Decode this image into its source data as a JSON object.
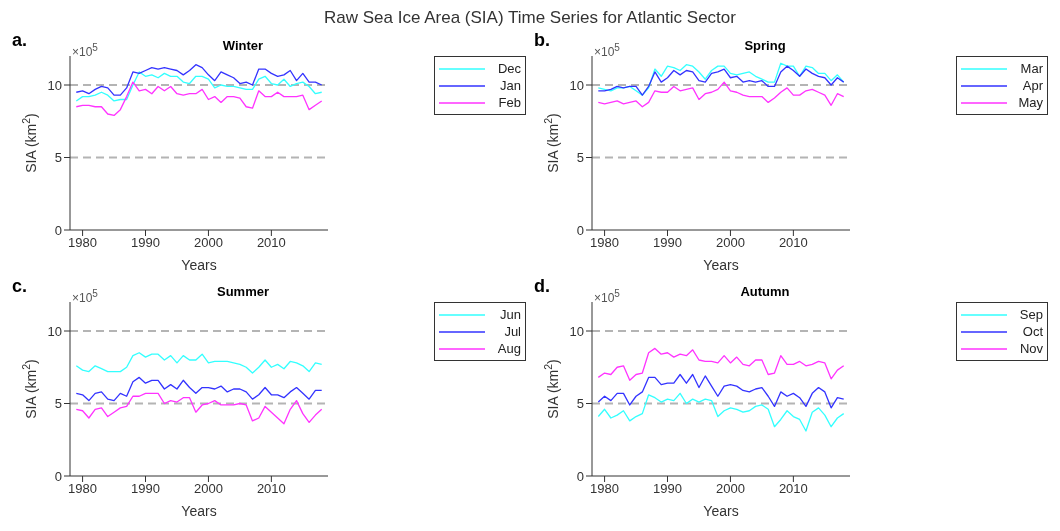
{
  "chart_data": [
    {
      "type": "line",
      "title": "Winter",
      "xlabel": "Years",
      "ylabel": "SIA (km$^{2}$)",
      "annotations": [
        "a.",
        "×10$^{5}$",
        "Raw Sea Ice Area (SIA) Time Series for Atlantic Sector"
      ],
      "x": [
        1979,
        1980,
        1981,
        1982,
        1983,
        1984,
        1985,
        1986,
        1987,
        1988,
        1989,
        1990,
        1991,
        1992,
        1993,
        1994,
        1995,
        1996,
        1997,
        1998,
        1999,
        2000,
        2001,
        2002,
        2003,
        2004,
        2005,
        2006,
        2007,
        2008,
        2009,
        2010,
        2011,
        2012,
        2013,
        2014,
        2015,
        2016,
        2017,
        2018
      ],
      "xlim": [
        1978,
        2019
      ],
      "xticks": [
        1980,
        1990,
        2000,
        2010
      ],
      "ylim": [
        0,
        12
      ],
      "yticks": [
        0,
        5,
        10
      ],
      "legend": "right",
      "marker": "none",
      "line_style": "solid",
      "ref_lines": [
        {
          "axis": "y",
          "value": 5,
          "color": "#b4b4b4",
          "line_style": "dashed"
        },
        {
          "axis": "y",
          "value": 10,
          "color": "#b4b4b4",
          "line_style": "dashed"
        }
      ],
      "series": [
        {
          "name": "Dec",
          "color": "#33ffff",
          "values": [
            8.9,
            9.2,
            9.2,
            9.3,
            9.5,
            9.3,
            8.9,
            9.0,
            9.0,
            10.0,
            10.9,
            10.6,
            10.7,
            10.5,
            10.8,
            10.6,
            10.6,
            10.2,
            10.1,
            10.6,
            10.6,
            10.4,
            9.8,
            10.0,
            9.9,
            9.9,
            9.8,
            9.7,
            9.7,
            10.4,
            10.6,
            10.1,
            10.0,
            10.4,
            9.9,
            10.1,
            10.2,
            9.9,
            9.4,
            9.5
          ]
        },
        {
          "name": "Jan",
          "color": "#3333ff",
          "values": [
            9.5,
            9.6,
            9.4,
            9.7,
            9.9,
            9.8,
            9.3,
            9.3,
            9.8,
            10.9,
            10.8,
            11.0,
            11.2,
            11.1,
            11.2,
            11.1,
            11.0,
            10.7,
            11.0,
            11.4,
            11.2,
            10.7,
            10.3,
            10.9,
            10.7,
            10.5,
            10.1,
            10.2,
            10.0,
            11.1,
            11.1,
            10.8,
            10.6,
            10.7,
            11.0,
            10.3,
            10.8,
            10.2,
            10.2,
            10.0
          ]
        },
        {
          "name": "Feb",
          "color": "#ff33ff",
          "values": [
            8.5,
            8.6,
            8.6,
            8.5,
            8.5,
            8.0,
            7.9,
            8.3,
            9.2,
            10.2,
            9.6,
            9.7,
            9.4,
            9.9,
            9.6,
            9.9,
            9.4,
            9.3,
            9.4,
            9.4,
            9.7,
            9.0,
            9.2,
            8.8,
            9.2,
            9.2,
            9.1,
            8.5,
            8.4,
            9.6,
            9.2,
            9.2,
            9.5,
            9.2,
            9.2,
            9.2,
            9.3,
            8.3,
            8.6,
            8.9
          ]
        }
      ]
    },
    {
      "type": "line",
      "title": "Spring",
      "xlabel": "Years",
      "ylabel": "SIA (km$^{2}$)",
      "annotations": [
        "b.",
        "×10$^{5}$"
      ],
      "x": [
        1979,
        1980,
        1981,
        1982,
        1983,
        1984,
        1985,
        1986,
        1987,
        1988,
        1989,
        1990,
        1991,
        1992,
        1993,
        1994,
        1995,
        1996,
        1997,
        1998,
        1999,
        2000,
        2001,
        2002,
        2003,
        2004,
        2005,
        2006,
        2007,
        2008,
        2009,
        2010,
        2011,
        2012,
        2013,
        2014,
        2015,
        2016,
        2017,
        2018
      ],
      "xlim": [
        1978,
        2019
      ],
      "xticks": [
        1980,
        1990,
        2000,
        2010
      ],
      "ylim": [
        0,
        12
      ],
      "yticks": [
        0,
        5,
        10
      ],
      "legend": "right",
      "marker": "none",
      "line_style": "solid",
      "ref_lines": [
        {
          "axis": "y",
          "value": 5,
          "color": "#b4b4b4",
          "line_style": "dashed"
        },
        {
          "axis": "y",
          "value": 10,
          "color": "#b4b4b4",
          "line_style": "dashed"
        }
      ],
      "series": [
        {
          "name": "Mar",
          "color": "#33ffff",
          "values": [
            9.8,
            9.7,
            9.6,
            9.8,
            9.8,
            9.9,
            9.6,
            9.3,
            9.8,
            11.1,
            10.6,
            11.3,
            11.2,
            11.0,
            11.4,
            11.3,
            10.9,
            10.4,
            11.0,
            11.3,
            11.3,
            10.8,
            10.7,
            10.8,
            10.9,
            10.6,
            10.4,
            10.2,
            10.2,
            11.5,
            11.3,
            11.3,
            10.6,
            11.3,
            11.2,
            10.8,
            10.8,
            10.3,
            10.7,
            10.2
          ]
        },
        {
          "name": "Apr",
          "color": "#3333ff",
          "values": [
            9.6,
            9.6,
            9.7,
            9.9,
            9.8,
            9.9,
            9.9,
            9.3,
            9.9,
            10.9,
            10.2,
            10.5,
            11.0,
            10.7,
            11.0,
            10.9,
            10.3,
            10.2,
            10.8,
            10.9,
            11.1,
            10.5,
            10.6,
            10.2,
            10.3,
            10.2,
            10.3,
            9.9,
            9.9,
            10.9,
            11.3,
            11.0,
            10.6,
            11.1,
            10.8,
            10.6,
            10.5,
            10.0,
            10.5,
            10.2
          ]
        },
        {
          "name": "May",
          "color": "#ff33ff",
          "values": [
            8.8,
            8.7,
            8.8,
            8.9,
            8.7,
            8.8,
            8.9,
            8.5,
            8.8,
            9.6,
            9.5,
            9.5,
            9.9,
            9.6,
            9.7,
            9.8,
            9.0,
            9.4,
            9.5,
            9.7,
            10.2,
            9.6,
            9.5,
            9.3,
            9.2,
            9.2,
            9.2,
            8.8,
            9.1,
            9.5,
            9.8,
            9.3,
            9.3,
            9.6,
            9.7,
            9.5,
            9.3,
            8.6,
            9.4,
            9.2
          ]
        }
      ]
    },
    {
      "type": "line",
      "title": "Summer",
      "xlabel": "Years",
      "ylabel": "SIA (km$^{2}$)",
      "annotations": [
        "c.",
        "×10$^{5}$"
      ],
      "x": [
        1979,
        1980,
        1981,
        1982,
        1983,
        1984,
        1985,
        1986,
        1987,
        1988,
        1989,
        1990,
        1991,
        1992,
        1993,
        1994,
        1995,
        1996,
        1997,
        1998,
        1999,
        2000,
        2001,
        2002,
        2003,
        2004,
        2005,
        2006,
        2007,
        2008,
        2009,
        2010,
        2011,
        2012,
        2013,
        2014,
        2015,
        2016,
        2017,
        2018
      ],
      "xlim": [
        1978,
        2019
      ],
      "xticks": [
        1980,
        1990,
        2000,
        2010
      ],
      "ylim": [
        0,
        12
      ],
      "yticks": [
        0,
        5,
        10
      ],
      "legend": "right",
      "marker": "none",
      "line_style": "solid",
      "ref_lines": [
        {
          "axis": "y",
          "value": 5,
          "color": "#b4b4b4",
          "line_style": "dashed"
        },
        {
          "axis": "y",
          "value": 10,
          "color": "#b4b4b4",
          "line_style": "dashed"
        }
      ],
      "series": [
        {
          "name": "Jun",
          "color": "#33ffff",
          "values": [
            7.6,
            7.3,
            7.2,
            7.6,
            7.4,
            7.2,
            7.2,
            7.2,
            7.5,
            8.3,
            8.5,
            8.2,
            8.4,
            8.4,
            8.0,
            8.3,
            7.8,
            8.3,
            8.0,
            8.0,
            8.4,
            7.8,
            7.9,
            7.9,
            7.9,
            7.8,
            7.7,
            7.5,
            7.1,
            7.5,
            8.0,
            7.5,
            7.7,
            7.4,
            7.9,
            7.8,
            7.6,
            7.2,
            7.8,
            7.7
          ]
        },
        {
          "name": "Jul",
          "color": "#3333ff",
          "values": [
            5.7,
            5.6,
            5.2,
            5.7,
            5.8,
            5.3,
            5.2,
            5.7,
            5.5,
            6.5,
            6.8,
            6.4,
            6.6,
            6.6,
            6.0,
            6.3,
            6.0,
            6.6,
            6.1,
            5.7,
            6.1,
            6.1,
            6.0,
            6.2,
            5.8,
            6.0,
            6.0,
            5.8,
            5.3,
            5.6,
            6.1,
            5.6,
            5.6,
            5.4,
            5.8,
            6.1,
            5.7,
            5.3,
            5.9,
            5.9
          ]
        },
        {
          "name": "Aug",
          "color": "#ff33ff",
          "values": [
            4.6,
            4.5,
            4.0,
            4.6,
            4.7,
            4.1,
            4.4,
            4.7,
            4.8,
            5.5,
            5.5,
            5.7,
            5.7,
            5.7,
            5.0,
            5.2,
            5.1,
            5.4,
            5.4,
            4.4,
            4.9,
            5.0,
            5.2,
            4.9,
            4.9,
            4.9,
            5.0,
            4.9,
            3.8,
            4.0,
            4.8,
            4.4,
            4.0,
            3.6,
            4.6,
            5.2,
            4.3,
            3.7,
            4.2,
            4.6
          ]
        }
      ]
    },
    {
      "type": "line",
      "title": "Autumn",
      "xlabel": "Years",
      "ylabel": "SIA (km$^{2}$)",
      "annotations": [
        "d.",
        "×10$^{5}$"
      ],
      "x": [
        1979,
        1980,
        1981,
        1982,
        1983,
        1984,
        1985,
        1986,
        1987,
        1988,
        1989,
        1990,
        1991,
        1992,
        1993,
        1994,
        1995,
        1996,
        1997,
        1998,
        1999,
        2000,
        2001,
        2002,
        2003,
        2004,
        2005,
        2006,
        2007,
        2008,
        2009,
        2010,
        2011,
        2012,
        2013,
        2014,
        2015,
        2016,
        2017,
        2018
      ],
      "xlim": [
        1978,
        2019
      ],
      "xticks": [
        1980,
        1990,
        2000,
        2010
      ],
      "ylim": [
        0,
        12
      ],
      "yticks": [
        0,
        5,
        10
      ],
      "legend": "right",
      "marker": "none",
      "line_style": "solid",
      "ref_lines": [
        {
          "axis": "y",
          "value": 5,
          "color": "#b4b4b4",
          "line_style": "dashed"
        },
        {
          "axis": "y",
          "value": 10,
          "color": "#b4b4b4",
          "line_style": "dashed"
        }
      ],
      "series": [
        {
          "name": "Sep",
          "color": "#33ffff",
          "values": [
            4.1,
            4.6,
            4.0,
            4.2,
            4.5,
            3.8,
            4.1,
            4.3,
            5.6,
            5.4,
            5.1,
            5.3,
            5.2,
            5.7,
            5.0,
            5.3,
            5.1,
            5.3,
            5.2,
            4.1,
            4.5,
            4.7,
            4.6,
            4.4,
            4.5,
            4.8,
            4.9,
            4.6,
            3.4,
            3.9,
            4.5,
            4.1,
            3.9,
            3.1,
            4.4,
            4.7,
            4.2,
            3.4,
            4.0,
            4.3
          ]
        },
        {
          "name": "Oct",
          "color": "#3333ff",
          "values": [
            5.1,
            5.5,
            5.2,
            5.7,
            5.7,
            4.9,
            5.5,
            5.8,
            6.8,
            6.8,
            6.3,
            6.4,
            6.4,
            7.0,
            6.4,
            7.0,
            6.1,
            6.9,
            6.2,
            5.5,
            6.2,
            6.3,
            6.2,
            5.9,
            5.8,
            6.0,
            6.1,
            5.5,
            4.8,
            5.8,
            5.5,
            5.7,
            5.4,
            4.8,
            5.7,
            6.1,
            5.8,
            4.7,
            5.4,
            5.3
          ]
        },
        {
          "name": "Nov",
          "color": "#ff33ff",
          "values": [
            6.8,
            7.1,
            7.0,
            7.5,
            7.6,
            6.6,
            7.0,
            7.1,
            8.5,
            8.8,
            8.4,
            8.5,
            8.2,
            8.4,
            8.3,
            8.7,
            8.0,
            7.9,
            7.9,
            7.8,
            8.3,
            7.8,
            8.2,
            7.7,
            7.6,
            8.0,
            8.0,
            7.0,
            7.1,
            8.3,
            7.7,
            7.7,
            7.9,
            7.6,
            7.7,
            7.9,
            7.8,
            6.7,
            7.3,
            7.6
          ]
        }
      ]
    }
  ]
}
